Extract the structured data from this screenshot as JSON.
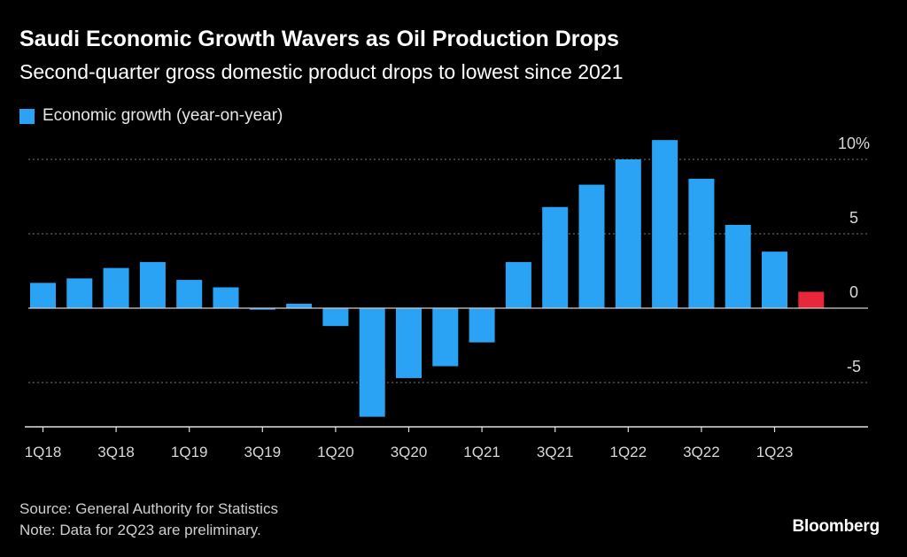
{
  "chart_data": {
    "type": "bar",
    "title": "Saudi Economic Growth Wavers as Oil Production Drops",
    "subtitle": "Second-quarter gross domestic product drops to lowest since 2021",
    "legend": [
      "Economic growth (year-on-year)"
    ],
    "categories": [
      "1Q18",
      "2Q18",
      "3Q18",
      "4Q18",
      "1Q19",
      "2Q19",
      "3Q19",
      "4Q19",
      "1Q20",
      "2Q20",
      "3Q20",
      "4Q20",
      "1Q21",
      "2Q21",
      "3Q21",
      "4Q21",
      "1Q22",
      "2Q22",
      "3Q22",
      "4Q22",
      "1Q23",
      "2Q23"
    ],
    "values": [
      1.7,
      2.0,
      2.7,
      3.1,
      1.9,
      1.4,
      -0.1,
      0.3,
      -1.2,
      -7.3,
      -4.7,
      -3.9,
      -2.3,
      3.1,
      6.8,
      8.3,
      10.0,
      11.3,
      8.7,
      5.6,
      3.8,
      1.1
    ],
    "highlight_color": "#e8273a",
    "bar_color": "#2aa3f5",
    "highlighted_category": "2Q23",
    "ylim": [
      -8,
      11.5
    ],
    "yticks": [
      10,
      5,
      0,
      -5
    ],
    "ytick_labels": [
      "10%",
      "5",
      "0",
      "-5"
    ],
    "xtick_labels": [
      "1Q18",
      "3Q18",
      "1Q19",
      "3Q19",
      "1Q20",
      "3Q20",
      "1Q21",
      "3Q21",
      "1Q22",
      "3Q22",
      "1Q23"
    ],
    "xlabel": "",
    "ylabel": "",
    "grid": true
  },
  "footer": {
    "source": "Source: General Authority for Statistics",
    "note": "Note: Data for 2Q23 are preliminary."
  },
  "brand": "Bloomberg"
}
